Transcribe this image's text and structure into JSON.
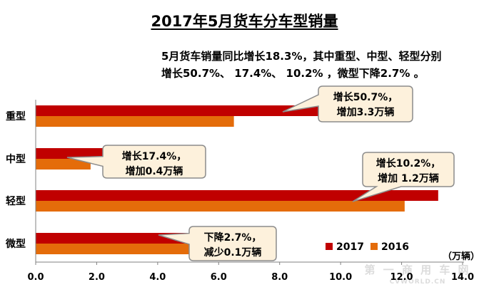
{
  "title": "2017年5月货车分车型销量",
  "summary": {
    "line1": "5月货车销量同比增长18.3%，其中重型、中型、轻型分别",
    "line2": "增长50.7%、 17.4%、 10.2% ，微型下降2.7% 。"
  },
  "chart_data": {
    "type": "bar",
    "orientation": "horizontal",
    "categories": [
      "重型",
      "中型",
      "轻型",
      "微型"
    ],
    "series": [
      {
        "name": "2017",
        "color": "#c00000",
        "values": [
          9.8,
          2.2,
          13.2,
          5.2
        ]
      },
      {
        "name": "2016",
        "color": "#e46c0a",
        "values": [
          6.5,
          1.8,
          12.1,
          5.3
        ]
      }
    ],
    "xlim": [
      0,
      14
    ],
    "ticks": [
      "0.0",
      "2.0",
      "4.0",
      "6.0",
      "8.0",
      "10.0",
      "12.0",
      "14.0"
    ],
    "unit": "（万辆）",
    "legend_position": "bottom-right",
    "grid": false,
    "callouts": [
      {
        "category": "重型",
        "lines": [
          "增长50.7%，",
          "增加3.3万辆"
        ]
      },
      {
        "category": "中型",
        "lines": [
          "增长17.4%，",
          "增加0.4万辆"
        ]
      },
      {
        "category": "轻型",
        "lines": [
          "增长10.2%，",
          "增加 1.2万辆"
        ]
      },
      {
        "category": "微型",
        "lines": [
          "下降2.7%，",
          "减少0.1万辆"
        ]
      }
    ]
  },
  "watermark": {
    "main": "第 一 商 用 车 网",
    "sub": "CVWORLD.CN"
  }
}
